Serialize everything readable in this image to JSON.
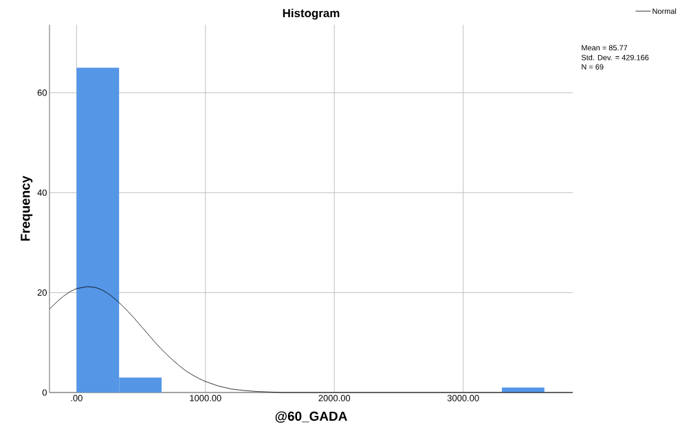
{
  "chart_data": {
    "type": "histogram",
    "title": "Histogram",
    "xlabel": "@60_GADA",
    "ylabel": "Frequency",
    "bins": [
      0,
      330,
      660,
      990,
      1320,
      1650,
      1980,
      2310,
      2640,
      2970,
      3300,
      3630
    ],
    "series": [
      {
        "type": "histogram",
        "color": "#5596e6",
        "values": [
          65,
          3,
          0,
          0,
          0,
          0,
          0,
          0,
          0,
          0,
          1
        ]
      },
      {
        "type": "line",
        "name": "Normal",
        "color": "#000000",
        "x": [
          -210,
          -150,
          -100,
          -50,
          0,
          86,
          150,
          200,
          250,
          300,
          350,
          400,
          450,
          500,
          550,
          600,
          650,
          700,
          750,
          800,
          850,
          900,
          950,
          1000,
          1100,
          1200,
          1300,
          1400,
          1500,
          1600,
          1800,
          2000,
          3000,
          3850
        ],
        "values": [
          16.7,
          18.2,
          19.3,
          20.2,
          20.8,
          21.2,
          21.0,
          20.5,
          19.7,
          18.7,
          17.5,
          16.2,
          14.8,
          13.3,
          11.8,
          10.3,
          8.9,
          7.6,
          6.4,
          5.3,
          4.3,
          3.5,
          2.8,
          2.2,
          1.3,
          0.7,
          0.4,
          0.2,
          0.1,
          0,
          0,
          0,
          0,
          0
        ]
      }
    ],
    "xlim": [
      -210,
      3850
    ],
    "ylim": [
      0,
      73.6
    ],
    "xticks": [
      {
        "value": 0,
        "label": ".00"
      },
      {
        "value": 1000,
        "label": "1000.00"
      },
      {
        "value": 2000,
        "label": "2000.00"
      },
      {
        "value": 3000,
        "label": "3000.00"
      }
    ],
    "yticks": [
      0,
      20,
      40,
      60
    ],
    "grid": true,
    "legend": "top right",
    "line_style": "solid",
    "marker": "none",
    "annotations": [
      "Mean = 85.77",
      "Std. Dev. = 429.166",
      "N = 69"
    ]
  }
}
